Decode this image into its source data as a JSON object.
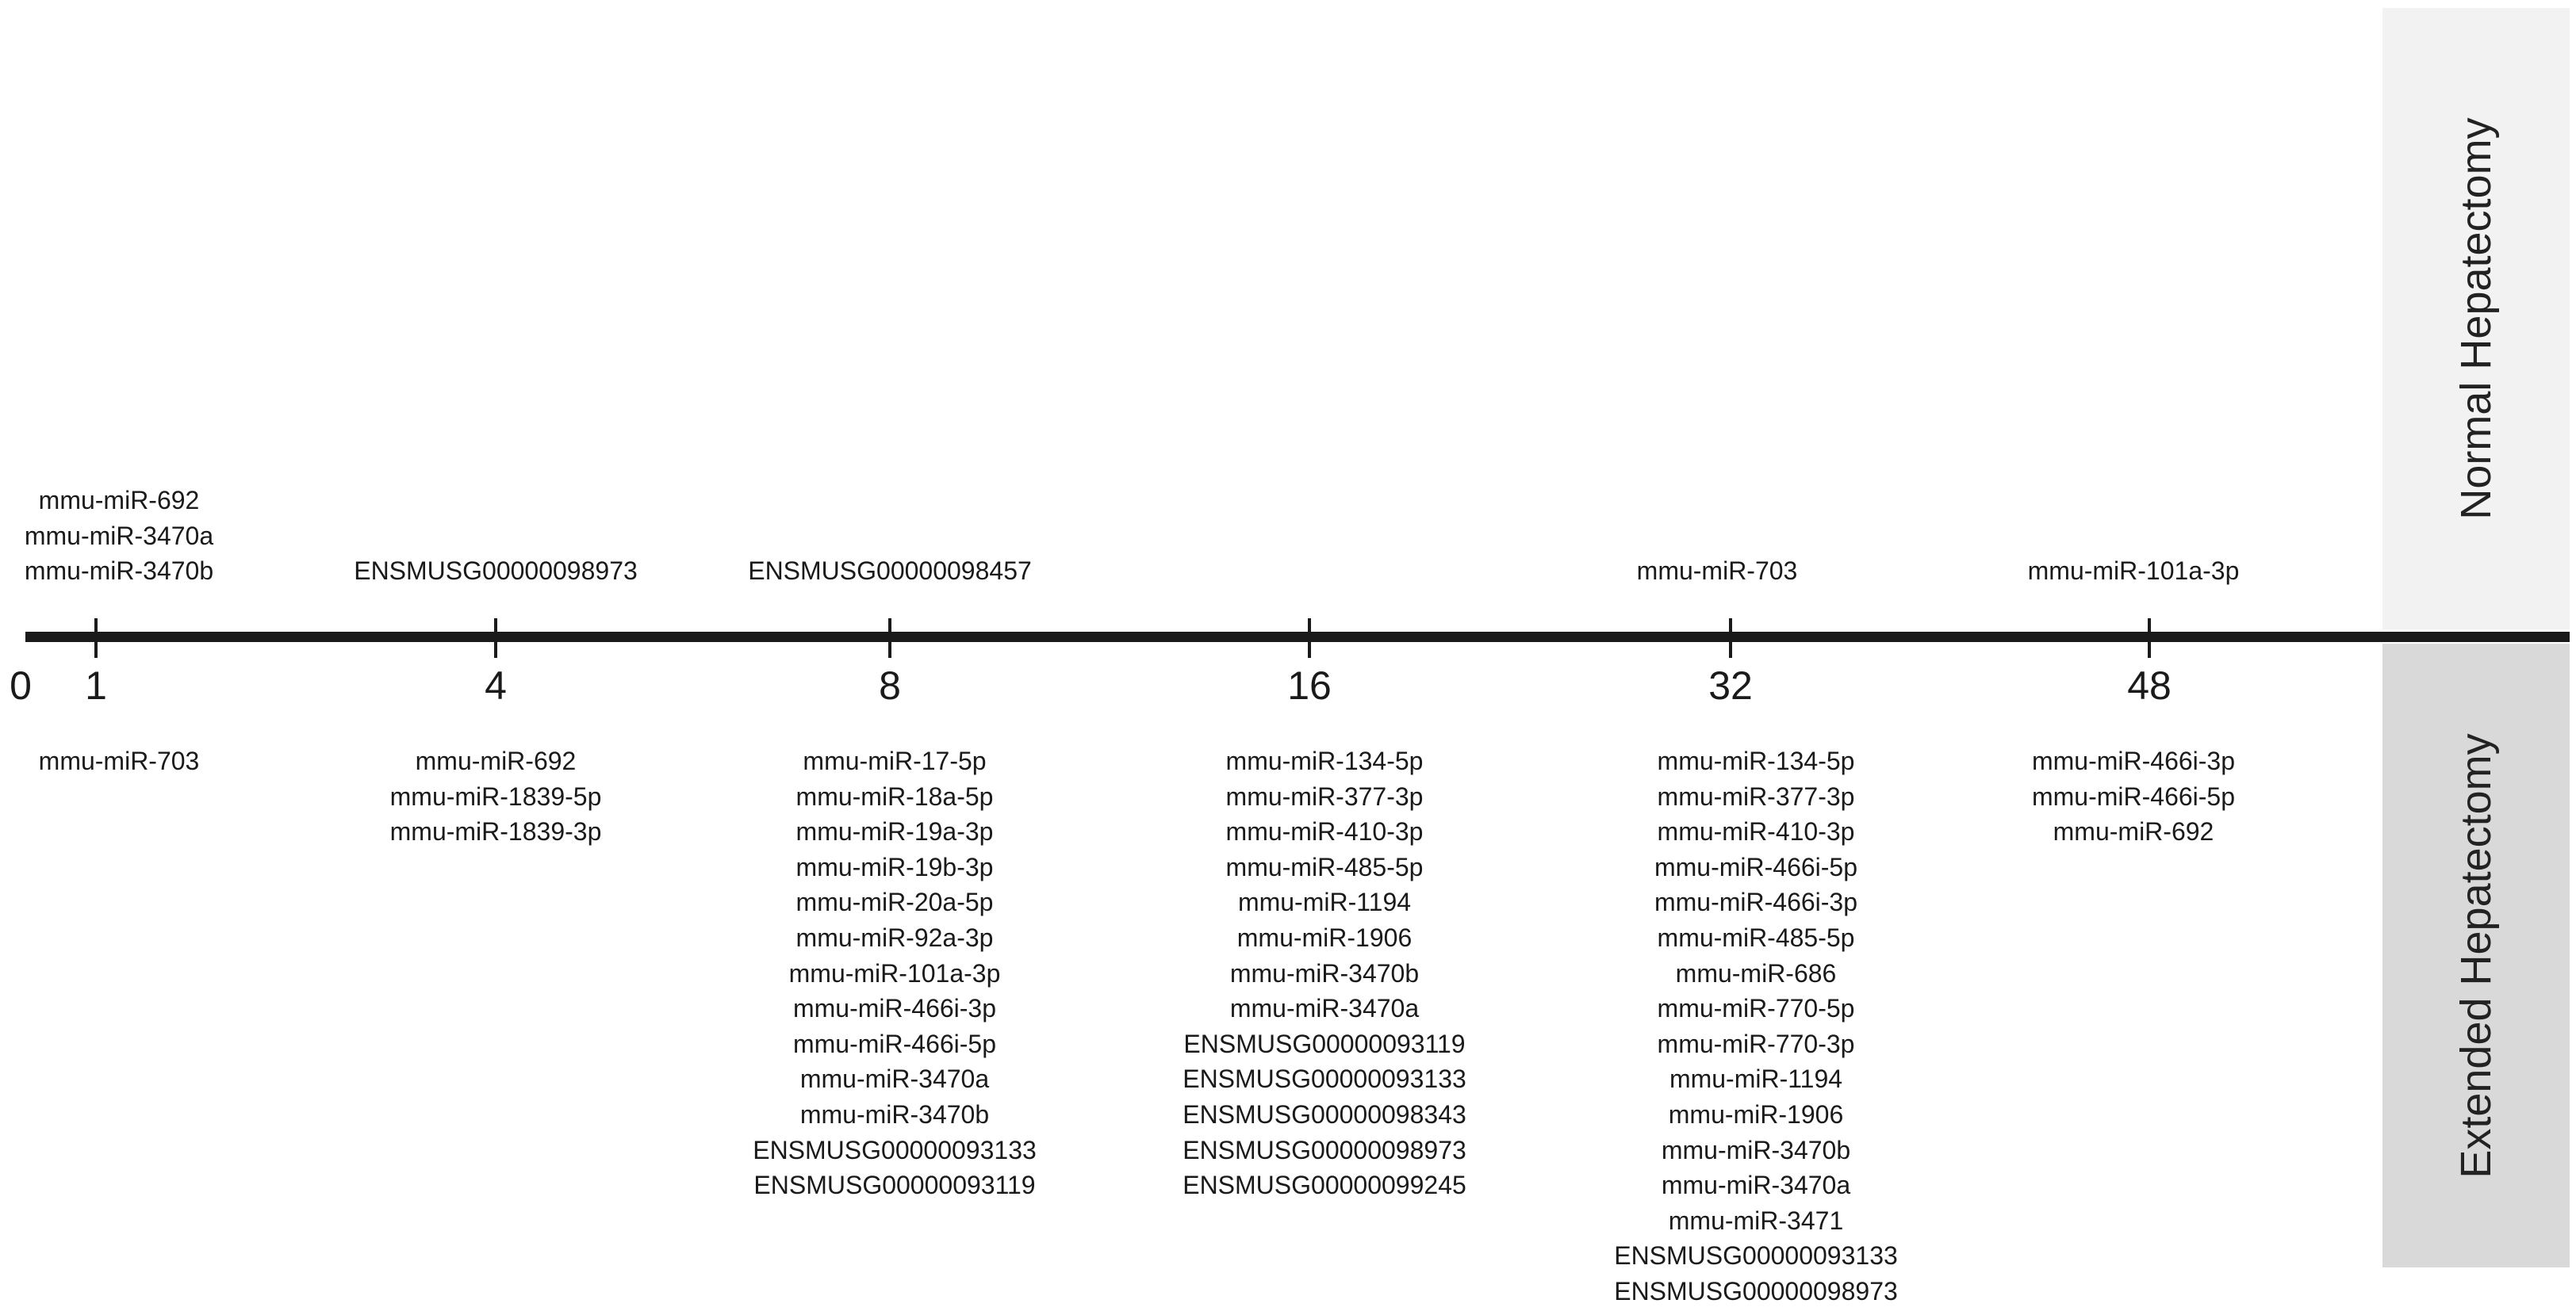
{
  "panels": {
    "normal_label": "Normal Hepatectomy",
    "extended_label": "Extended Hepatectomy",
    "normal_color": "#f2f2f2",
    "extended_color": "#d9d9d9"
  },
  "axis": {
    "origin_label": "0",
    "ticks": [
      {
        "label": "1"
      },
      {
        "label": "4"
      },
      {
        "label": "8"
      },
      {
        "label": "16"
      },
      {
        "label": "32"
      },
      {
        "label": "48"
      }
    ]
  },
  "normal_hepatectomy": [
    {
      "time": "1",
      "items": [
        "mmu-miR-692",
        "mmu-miR-3470a",
        "mmu-miR-3470b"
      ]
    },
    {
      "time": "4",
      "items": [
        "ENSMUSG00000098973"
      ]
    },
    {
      "time": "8",
      "items": [
        "ENSMUSG00000098457"
      ]
    },
    {
      "time": "16",
      "items": []
    },
    {
      "time": "32",
      "items": [
        "mmu-miR-703"
      ]
    },
    {
      "time": "48",
      "items": [
        "mmu-miR-101a-3p"
      ]
    }
  ],
  "extended_hepatectomy": [
    {
      "time": "1",
      "items": [
        "mmu-miR-703"
      ]
    },
    {
      "time": "4",
      "items": [
        "mmu-miR-692",
        "mmu-miR-1839-5p",
        "mmu-miR-1839-3p"
      ]
    },
    {
      "time": "8",
      "items": [
        "mmu-miR-17-5p",
        "mmu-miR-18a-5p",
        "mmu-miR-19a-3p",
        "mmu-miR-19b-3p",
        "mmu-miR-20a-5p",
        "mmu-miR-92a-3p",
        "mmu-miR-101a-3p",
        "mmu-miR-466i-3p",
        "mmu-miR-466i-5p",
        "mmu-miR-3470a",
        "mmu-miR-3470b",
        "ENSMUSG00000093133",
        "ENSMUSG00000093119"
      ]
    },
    {
      "time": "16",
      "items": [
        "mmu-miR-134-5p",
        "mmu-miR-377-3p",
        "mmu-miR-410-3p",
        "mmu-miR-485-5p",
        "mmu-miR-1194",
        "mmu-miR-1906",
        "mmu-miR-3470b",
        "mmu-miR-3470a",
        "ENSMUSG00000093119",
        "ENSMUSG00000093133",
        "ENSMUSG00000098343",
        "ENSMUSG00000098973",
        "ENSMUSG00000099245"
      ]
    },
    {
      "time": "32",
      "items": [
        "mmu-miR-134-5p",
        "mmu-miR-377-3p",
        "mmu-miR-410-3p",
        "mmu-miR-466i-5p",
        "mmu-miR-466i-3p",
        "mmu-miR-485-5p",
        "mmu-miR-686",
        "mmu-miR-770-5p",
        "mmu-miR-770-3p",
        "mmu-miR-1194",
        "mmu-miR-1906",
        "mmu-miR-3470b",
        "mmu-miR-3470a",
        "mmu-miR-3471",
        "ENSMUSG00000093133",
        "ENSMUSG00000098973"
      ]
    },
    {
      "time": "48",
      "items": [
        "mmu-miR-466i-3p",
        "mmu-miR-466i-5p",
        "mmu-miR-692"
      ]
    }
  ]
}
